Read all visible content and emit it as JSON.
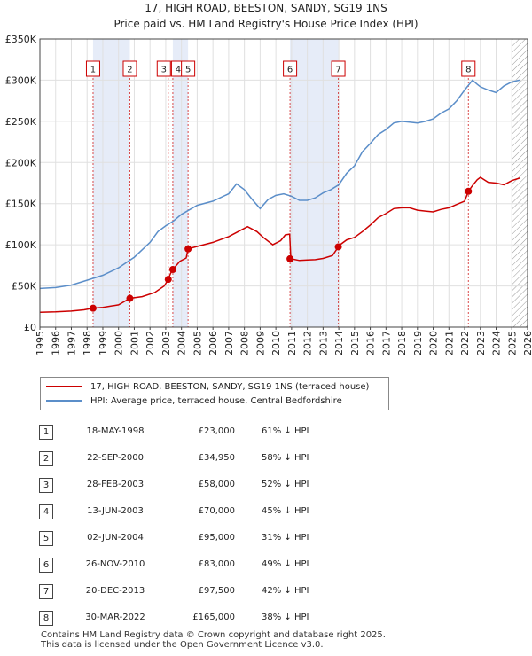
{
  "chart_data": {
    "type": "line",
    "title": "17, HIGH ROAD, BEESTON, SANDY, SG19 1NS",
    "subtitle": "Price paid vs. HM Land Registry's House Price Index (HPI)",
    "xlim": [
      1995,
      2026
    ],
    "ylim": [
      0,
      350000
    ],
    "y_ticks": [
      0,
      50000,
      100000,
      150000,
      200000,
      250000,
      300000,
      350000
    ],
    "y_tick_labels": [
      "£0",
      "£50K",
      "£100K",
      "£150K",
      "£200K",
      "£250K",
      "£300K",
      "£350K"
    ],
    "x_ticks": [
      1995,
      1996,
      1997,
      1998,
      1999,
      2000,
      2001,
      2002,
      2003,
      2004,
      2005,
      2006,
      2007,
      2008,
      2009,
      2010,
      2011,
      2012,
      2013,
      2014,
      2015,
      2016,
      2017,
      2018,
      2019,
      2020,
      2021,
      2022,
      2023,
      2024,
      2025,
      2026
    ],
    "grid": true,
    "hatch_from": 2025.0,
    "series": [
      {
        "name": "17, HIGH ROAD, BEESTON, SANDY, SG19 1NS (terraced house)",
        "color": "#cc0000",
        "x": [
          1995.0,
          1996.0,
          1997.0,
          1997.8,
          1998.38,
          1999.0,
          2000.0,
          2000.72,
          2001.5,
          2002.3,
          2002.9,
          2003.16,
          2003.3,
          2003.45,
          2003.9,
          2004.3,
          2004.42,
          2004.6,
          2005.0,
          2006.0,
          2007.0,
          2007.8,
          2008.2,
          2008.8,
          2009.2,
          2009.8,
          2010.3,
          2010.6,
          2010.88,
          2010.95,
          2011.5,
          2012.0,
          2012.5,
          2013.0,
          2013.6,
          2013.97,
          2014.0,
          2014.5,
          2015.0,
          2015.5,
          2016.0,
          2016.5,
          2017.0,
          2017.5,
          2018.0,
          2018.5,
          2019.0,
          2019.5,
          2020.0,
          2020.5,
          2021.0,
          2021.5,
          2022.0,
          2022.24,
          2022.5,
          2022.8,
          2023.0,
          2023.5,
          2024.0,
          2024.5,
          2025.0,
          2025.5
        ],
        "values": [
          18000,
          18500,
          19500,
          21000,
          23000,
          24000,
          27000,
          34950,
          37000,
          42000,
          50000,
          58000,
          65000,
          70000,
          80000,
          84000,
          95000,
          96000,
          98000,
          103000,
          110000,
          118000,
          122000,
          116000,
          109000,
          100000,
          105000,
          112000,
          113000,
          83000,
          81000,
          81500,
          82000,
          83500,
          87000,
          97500,
          99000,
          106000,
          109000,
          116000,
          124000,
          133000,
          138000,
          144000,
          145000,
          145000,
          142000,
          141000,
          140000,
          143000,
          145000,
          149000,
          153000,
          165000,
          172000,
          179000,
          182000,
          176000,
          175000,
          173000,
          178000,
          181000
        ]
      },
      {
        "name": "HPI: Average price, terraced house, Central Bedfordshire",
        "color": "#5b8ec9",
        "x": [
          1995.0,
          1996.0,
          1997.0,
          1998.0,
          1999.0,
          2000.0,
          2001.0,
          2002.0,
          2002.5,
          2003.0,
          2003.5,
          2004.0,
          2005.0,
          2006.0,
          2007.0,
          2007.5,
          2008.0,
          2008.5,
          2009.0,
          2009.5,
          2010.0,
          2010.5,
          2011.0,
          2011.5,
          2012.0,
          2012.5,
          2013.0,
          2013.5,
          2014.0,
          2014.5,
          2015.0,
          2015.5,
          2016.0,
          2016.5,
          2017.0,
          2017.5,
          2018.0,
          2018.5,
          2019.0,
          2019.5,
          2020.0,
          2020.5,
          2021.0,
          2021.5,
          2022.0,
          2022.5,
          2022.8,
          2023.0,
          2023.5,
          2024.0,
          2024.5,
          2025.0,
          2025.5
        ],
        "values": [
          47000,
          48000,
          51000,
          57000,
          63000,
          72000,
          85000,
          103000,
          116000,
          123000,
          129000,
          137000,
          148000,
          153000,
          162000,
          174000,
          167000,
          155000,
          144000,
          155000,
          160000,
          162000,
          159000,
          154000,
          154000,
          157000,
          163000,
          167000,
          173000,
          187000,
          196000,
          213000,
          223000,
          234000,
          240000,
          248000,
          250000,
          249000,
          248000,
          250000,
          253000,
          260000,
          265000,
          275000,
          288000,
          300000,
          295000,
          292000,
          288000,
          285000,
          293000,
          298000,
          300000
        ]
      }
    ],
    "markers": [
      {
        "label": "1",
        "x": 1998.38,
        "y": 23000
      },
      {
        "label": "2",
        "x": 2000.72,
        "y": 34950
      },
      {
        "label": "3",
        "x": 2003.16,
        "y": 58000
      },
      {
        "label": "4",
        "x": 2003.45,
        "y": 70000
      },
      {
        "label": "5",
        "x": 2004.42,
        "y": 95000
      },
      {
        "label": "6",
        "x": 2010.9,
        "y": 83000
      },
      {
        "label": "7",
        "x": 2013.97,
        "y": 97500
      },
      {
        "label": "8",
        "x": 2022.24,
        "y": 165000
      }
    ],
    "shaded_spans": [
      [
        1998.38,
        2000.72
      ],
      [
        2003.45,
        2004.42
      ],
      [
        2010.9,
        2013.97
      ]
    ]
  },
  "legend": {
    "property_label": "17, HIGH ROAD, BEESTON, SANDY, SG19 1NS (terraced house)",
    "hpi_label": "HPI: Average price, terraced house, Central Bedfordshire"
  },
  "transactions": [
    {
      "num": "1",
      "date": "18-MAY-1998",
      "price": "£23,000",
      "hpi": "61% ↓ HPI"
    },
    {
      "num": "2",
      "date": "22-SEP-2000",
      "price": "£34,950",
      "hpi": "58% ↓ HPI"
    },
    {
      "num": "3",
      "date": "28-FEB-2003",
      "price": "£58,000",
      "hpi": "52% ↓ HPI"
    },
    {
      "num": "4",
      "date": "13-JUN-2003",
      "price": "£70,000",
      "hpi": "45% ↓ HPI"
    },
    {
      "num": "5",
      "date": "02-JUN-2004",
      "price": "£95,000",
      "hpi": "31% ↓ HPI"
    },
    {
      "num": "6",
      "date": "26-NOV-2010",
      "price": "£83,000",
      "hpi": "49% ↓ HPI"
    },
    {
      "num": "7",
      "date": "20-DEC-2013",
      "price": "£97,500",
      "hpi": "42% ↓ HPI"
    },
    {
      "num": "8",
      "date": "30-MAR-2022",
      "price": "£165,000",
      "hpi": "38% ↓ HPI"
    }
  ],
  "footer": {
    "line1": "Contains HM Land Registry data © Crown copyright and database right 2025.",
    "line2": "This data is licensed under the Open Government Licence v3.0."
  }
}
